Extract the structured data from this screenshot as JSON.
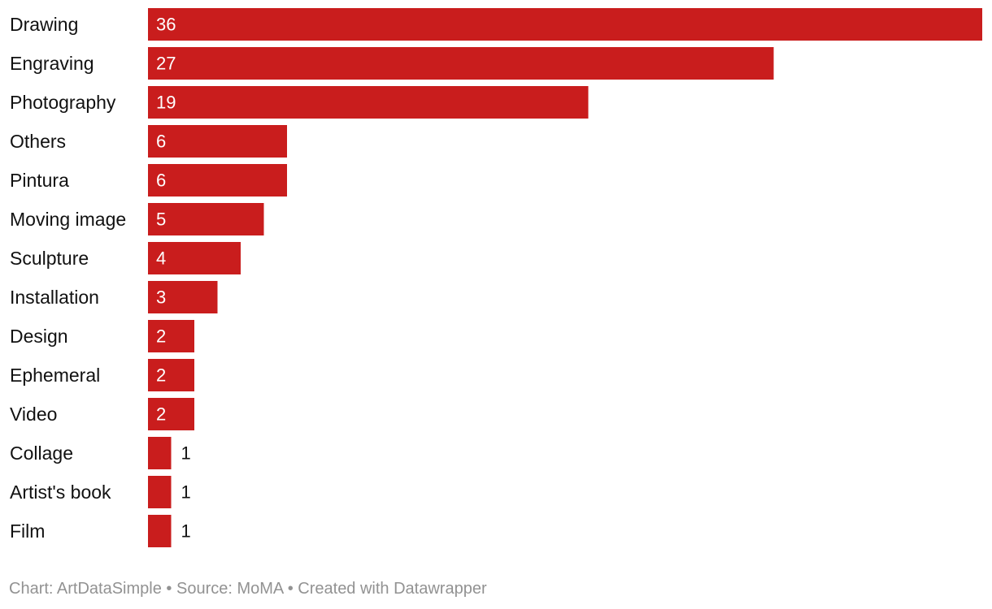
{
  "chart_data": {
    "type": "bar",
    "orientation": "horizontal",
    "title": "",
    "xlabel": "",
    "ylabel": "",
    "categories": [
      "Drawing",
      "Engraving",
      "Photography",
      "Others",
      "Pintura",
      "Moving image",
      "Sculpture",
      "Installation",
      "Design",
      "Ephemeral",
      "Video",
      "Collage",
      "Artist's book",
      "Film"
    ],
    "values": [
      36,
      27,
      19,
      6,
      6,
      5,
      4,
      3,
      2,
      2,
      2,
      1,
      1,
      1
    ],
    "xlim": [
      0,
      36
    ],
    "grid": false,
    "legend": "none",
    "value_labels": true
  },
  "colors": {
    "bar": "#c91d1d",
    "label_inside": "#ffffff",
    "label_outside": "#111111",
    "category_text": "#111111",
    "footer_text": "#929292"
  },
  "footer": {
    "chart_credit": "Chart: ArtDataSimple",
    "separator": " • ",
    "source": "Source: MoMA",
    "created_with": "Created with Datawrapper"
  }
}
